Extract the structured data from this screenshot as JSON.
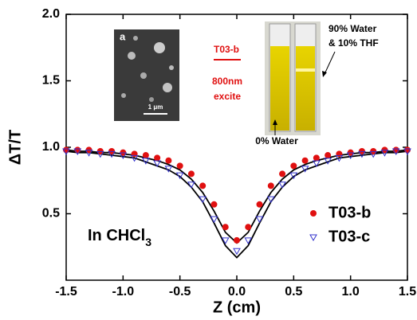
{
  "chart_data": {
    "type": "scatter",
    "x_label": "Z (cm)",
    "y_label": "ΔT/T",
    "x": [
      -1.5,
      -1.4,
      -1.3,
      -1.2,
      -1.1,
      -1.0,
      -0.9,
      -0.8,
      -0.7,
      -0.6,
      -0.5,
      -0.4,
      -0.3,
      -0.2,
      -0.1,
      0,
      0.1,
      0.2,
      0.3,
      0.4,
      0.5,
      0.6,
      0.7,
      0.8,
      0.9,
      1.0,
      1.1,
      1.2,
      1.3,
      1.4,
      1.5
    ],
    "series": [
      {
        "name": "T03-b",
        "color": "#e01010",
        "marker": "circle",
        "values": [
          0.98,
          0.98,
          0.98,
          0.97,
          0.97,
          0.96,
          0.95,
          0.94,
          0.92,
          0.9,
          0.86,
          0.8,
          0.71,
          0.57,
          0.4,
          0.3,
          0.4,
          0.57,
          0.71,
          0.8,
          0.86,
          0.9,
          0.92,
          0.94,
          0.95,
          0.96,
          0.97,
          0.97,
          0.98,
          0.98,
          0.98
        ]
      },
      {
        "name": "T03-c",
        "color": "#3333cc",
        "marker": "triangle-down",
        "values": [
          0.97,
          0.97,
          0.96,
          0.95,
          0.95,
          0.94,
          0.92,
          0.9,
          0.88,
          0.84,
          0.79,
          0.72,
          0.61,
          0.46,
          0.3,
          0.22,
          0.3,
          0.46,
          0.61,
          0.72,
          0.79,
          0.84,
          0.88,
          0.9,
          0.92,
          0.94,
          0.95,
          0.95,
          0.96,
          0.97,
          0.97
        ]
      },
      {
        "color": "#000000",
        "marker": "line",
        "values": [
          0.97,
          0.96,
          0.96,
          0.95,
          0.94,
          0.93,
          0.92,
          0.89,
          0.86,
          0.83,
          0.78,
          0.7,
          0.59,
          0.43,
          0.26,
          0.17,
          0.26,
          0.43,
          0.59,
          0.7,
          0.78,
          0.83,
          0.86,
          0.89,
          0.92,
          0.93,
          0.94,
          0.95,
          0.96,
          0.96,
          0.97
        ]
      },
      {
        "color": "#000000",
        "marker": "line",
        "values": [
          0.98,
          0.97,
          0.97,
          0.96,
          0.96,
          0.95,
          0.94,
          0.92,
          0.9,
          0.87,
          0.83,
          0.76,
          0.66,
          0.52,
          0.36,
          0.28,
          0.36,
          0.52,
          0.66,
          0.76,
          0.83,
          0.87,
          0.9,
          0.92,
          0.94,
          0.95,
          0.96,
          0.96,
          0.97,
          0.97,
          0.98
        ]
      }
    ],
    "xlim": [
      -1.5,
      1.5
    ],
    "xticks": [
      -1.5,
      {
        "value": -1,
        "label": "-1.0"
      },
      -0.5,
      {
        "value": 0,
        "label": "0.0"
      },
      0.5,
      {
        "value": 1,
        "label": "1.0"
      },
      1.5
    ],
    "ylim": [
      0,
      2
    ],
    "yticks": [
      0.5,
      {
        "value": 1,
        "label": "1.0"
      },
      1.5,
      {
        "value": 2,
        "label": "2.0"
      }
    ],
    "legend": "lower-right",
    "annotation": {
      "text": "In CHCl",
      "subscript": "3"
    },
    "inset_sem": {
      "label": "a",
      "scale_bar": "1 μm"
    },
    "inset_vials": {
      "sample": "T03-b",
      "wavelength": "800nm",
      "mode": "excite",
      "left_vial": "0% Water",
      "right_vial_1": "90% Water",
      "right_vial_2": "& 10% THF"
    }
  }
}
